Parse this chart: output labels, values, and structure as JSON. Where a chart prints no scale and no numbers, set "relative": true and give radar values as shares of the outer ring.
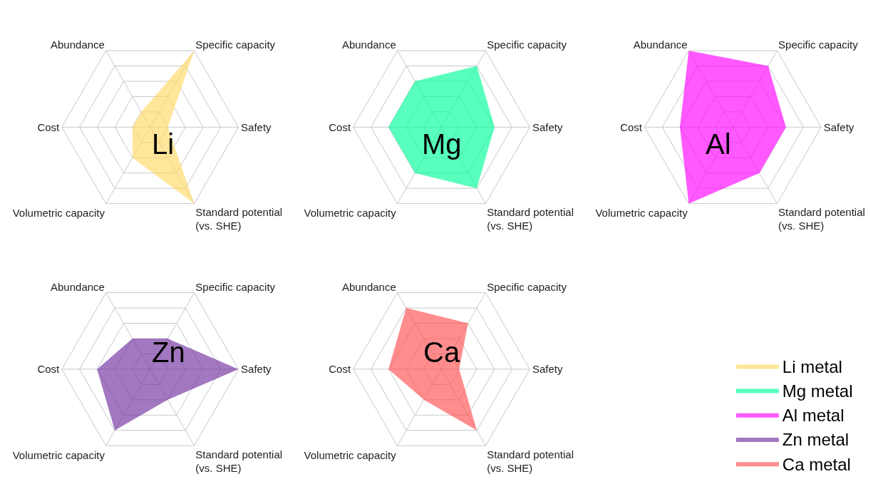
{
  "chart_data": [
    {
      "type": "radar",
      "title": "Li",
      "categories": [
        "Specific capacity",
        "Safety",
        "Standard potential\n(vs. SHE)",
        "Volumetric capacity",
        "Cost",
        "Abundance"
      ],
      "relative": true,
      "grid": true,
      "legend": "bottom right",
      "series": [
        {
          "name": "Li metal",
          "color": "#ffd966",
          "values": [
            1.0,
            0.2,
            1.0,
            0.4,
            0.2,
            0.2
          ]
        }
      ]
    },
    {
      "type": "radar",
      "title": "Mg",
      "categories": [
        "Specific capacity",
        "Safety",
        "Standard potential\n(vs. SHE)",
        "Volumetric capacity",
        "Cost",
        "Abundance"
      ],
      "relative": true,
      "grid": true,
      "legend": "bottom right",
      "series": [
        {
          "name": "Mg metal",
          "color": "#00ff99",
          "values": [
            0.8,
            0.6,
            0.8,
            0.6,
            0.6,
            0.6
          ]
        }
      ]
    },
    {
      "type": "radar",
      "title": "Al",
      "categories": [
        "Specific capacity",
        "Safety",
        "Standard potential\n(vs. SHE)",
        "Volumetric capacity",
        "Cost",
        "Abundance"
      ],
      "relative": true,
      "grid": true,
      "legend": "bottom right",
      "series": [
        {
          "name": "Al metal",
          "color": "#ff00ff",
          "values": [
            0.8,
            0.6,
            0.6,
            1.0,
            0.6,
            1.0
          ]
        }
      ]
    },
    {
      "type": "radar",
      "title": "Zn",
      "categories": [
        "Specific capacity",
        "Safety",
        "Standard potential\n(vs. SHE)",
        "Volumetric capacity",
        "Cost",
        "Abundance"
      ],
      "relative": true,
      "grid": true,
      "legend": "bottom right",
      "series": [
        {
          "name": "Zn metal",
          "color": "#7030a0",
          "values": [
            0.4,
            1.0,
            0.4,
            0.8,
            0.6,
            0.4
          ]
        }
      ]
    },
    {
      "type": "radar",
      "title": "Ca",
      "categories": [
        "Specific capacity",
        "Safety",
        "Standard potential\n(vs. SHE)",
        "Volumetric capacity",
        "Cost",
        "Abundance"
      ],
      "relative": true,
      "grid": true,
      "legend": "bottom right",
      "series": [
        {
          "name": "Ca metal",
          "color": "#ff5050",
          "values": [
            0.6,
            0.2,
            0.8,
            0.4,
            0.6,
            0.8
          ]
        }
      ]
    }
  ]
}
